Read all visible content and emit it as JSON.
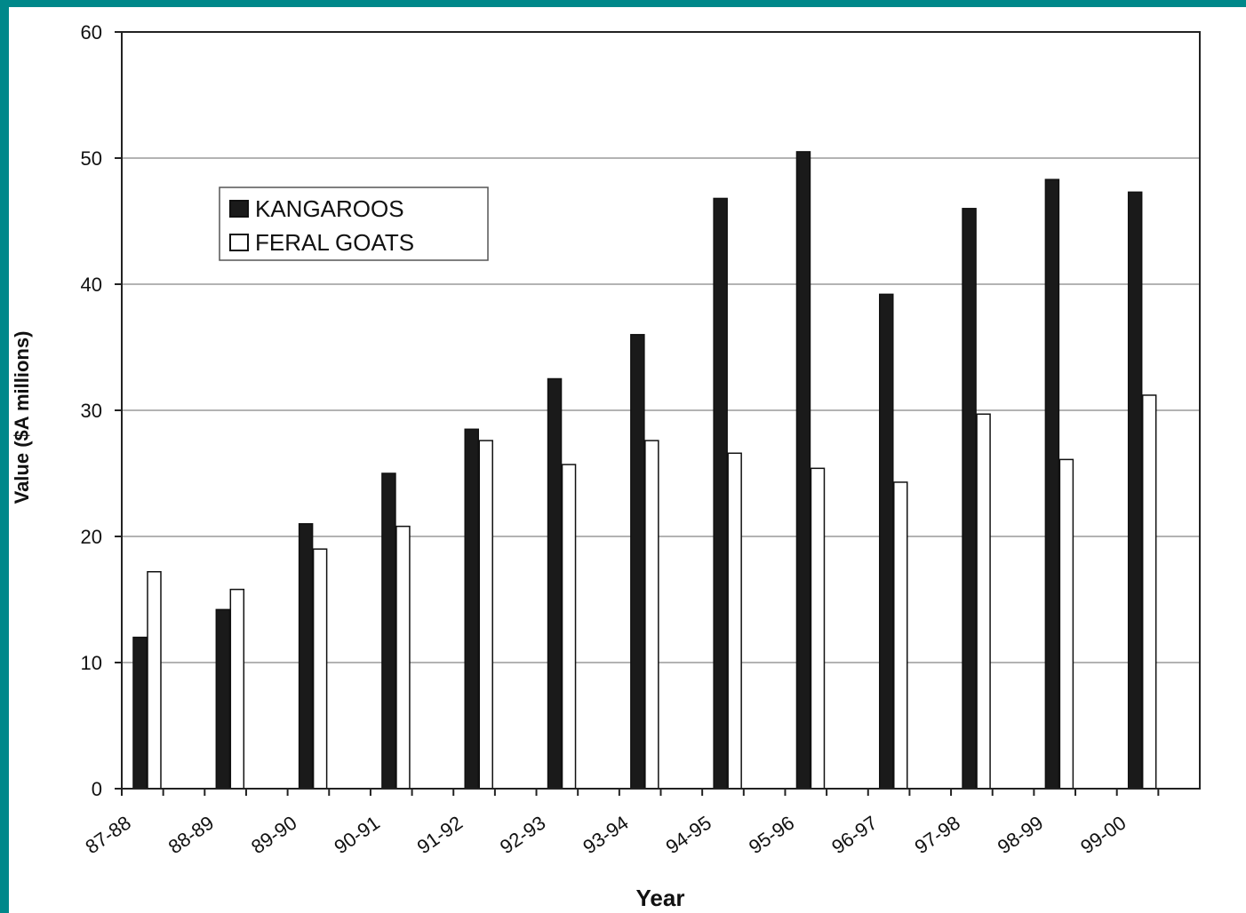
{
  "chart_data": {
    "type": "bar",
    "title": "",
    "xlabel": "Year",
    "ylabel": "Value ($A millions)",
    "ylim": [
      0,
      60
    ],
    "yticks": [
      0,
      10,
      20,
      30,
      40,
      50,
      60
    ],
    "grid": true,
    "legend_position": "top-left",
    "categories": [
      "87-88",
      "88-89",
      "89-90",
      "90-91",
      "91-92",
      "92-93",
      "93-94",
      "94-95",
      "95-96",
      "96-97",
      "97-98",
      "98-99",
      "99-00"
    ],
    "series": [
      {
        "name": "KANGAROOS",
        "color": "#1a1a1a",
        "values": [
          12,
          14.2,
          21,
          25,
          28.5,
          32.5,
          36,
          46.8,
          50.5,
          39.2,
          46,
          48.3,
          47.3
        ]
      },
      {
        "name": "FERAL GOATS",
        "color": "#ffffff",
        "values": [
          17.2,
          15.8,
          19,
          20.8,
          27.6,
          25.7,
          27.6,
          26.6,
          25.4,
          24.3,
          29.7,
          26.1,
          31.2
        ]
      }
    ]
  },
  "colors": {
    "background_border": "#00888a",
    "plot_background": "#ffffff",
    "grid": "#9a9a9a"
  }
}
